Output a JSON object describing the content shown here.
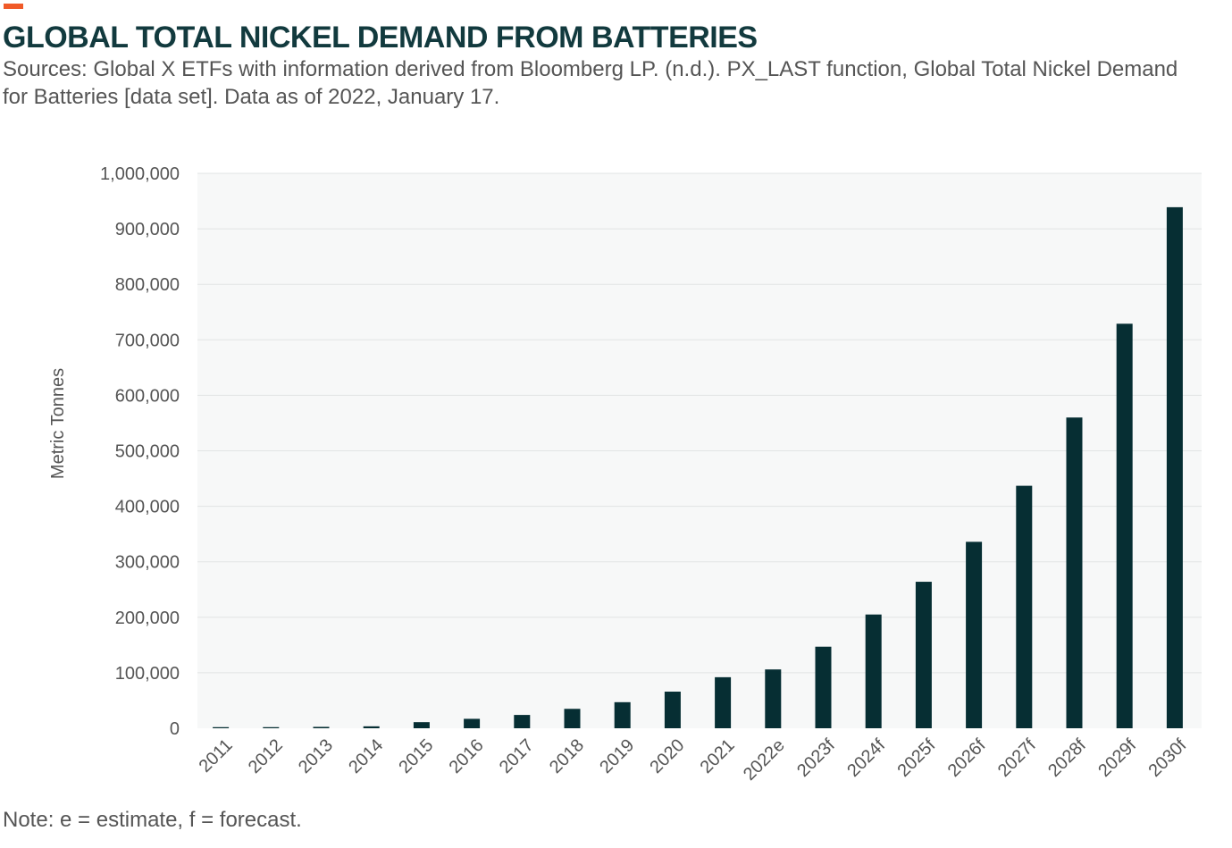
{
  "header": {
    "title": "GLOBAL TOTAL NICKEL DEMAND FROM BATTERIES",
    "subtitle": "Sources: Global X ETFs with information derived from Bloomberg LP. (n.d.). PX_LAST function, Global Total Nickel Demand for Batteries [data set]. Data as of 2022, January 17."
  },
  "footer": {
    "note": "Note: e = estimate, f = forecast."
  },
  "colors": {
    "accent": "#f05a28",
    "title": "#123a3e",
    "bar": "#062e33",
    "plot_background": "#f7f8f8",
    "gridline": "#e2e4e4",
    "text": "#555555"
  },
  "chart_data": {
    "type": "bar",
    "title": "GLOBAL TOTAL NICKEL DEMAND FROM BATTERIES",
    "xlabel": "",
    "ylabel": "Metric Tonnes",
    "ylim": [
      0,
      1000000
    ],
    "y_ticks": [
      0,
      100000,
      200000,
      300000,
      400000,
      500000,
      600000,
      700000,
      800000,
      900000,
      1000000
    ],
    "y_tick_labels": [
      "0",
      "100,000",
      "200,000",
      "300,000",
      "400,000",
      "500,000",
      "600,000",
      "700,000",
      "800,000",
      "900,000",
      "1,000,000"
    ],
    "categories": [
      "2011",
      "2012",
      "2013",
      "2014",
      "2015",
      "2016",
      "2017",
      "2018",
      "2019",
      "2020",
      "2021",
      "2022e",
      "2023f",
      "2024f",
      "2025f",
      "2026f",
      "2027f",
      "2028f",
      "2029f",
      "2030f"
    ],
    "values": [
      2000,
      2000,
      2500,
      3500,
      11000,
      17000,
      24000,
      35000,
      47000,
      66000,
      92000,
      106000,
      147000,
      205000,
      264000,
      336000,
      437000,
      560000,
      729000,
      939000
    ],
    "grid": true,
    "legend": "none"
  }
}
